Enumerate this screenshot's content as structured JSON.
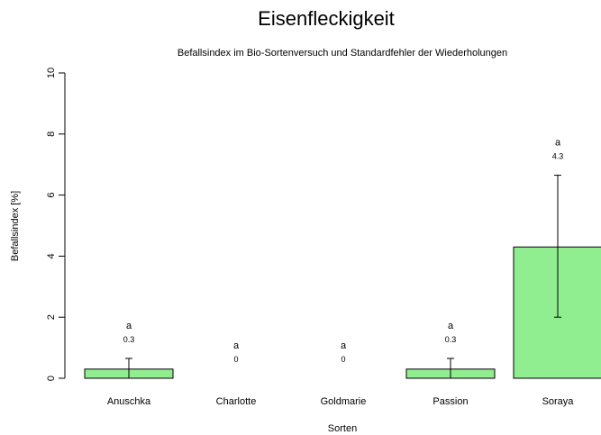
{
  "chart_data": {
    "type": "bar",
    "title": "Eisenfleckigkeit",
    "subtitle": "Befallsindex im Bio-Sortenversuch und Standardfehler der Wiederholungen",
    "xlabel": "Sorten",
    "ylabel": "Befallsindex [%]",
    "ylim": [
      0,
      10
    ],
    "yticks": [
      0,
      2,
      4,
      6,
      8,
      10
    ],
    "categories": [
      "Anuschka",
      "Charlotte",
      "Goldmarie",
      "Passion",
      "Soraya"
    ],
    "values": [
      0.3,
      0,
      0,
      0.3,
      4.3
    ],
    "error_low": [
      0,
      0,
      0,
      0,
      2.0
    ],
    "error_high": [
      0.65,
      0,
      0,
      0.65,
      6.65
    ],
    "letters": [
      "a",
      "a",
      "a",
      "a",
      "a"
    ],
    "value_labels": [
      "0.3",
      "0",
      "0",
      "0.3",
      "4.3"
    ],
    "bar_color": "#90EE90",
    "grid": false
  }
}
